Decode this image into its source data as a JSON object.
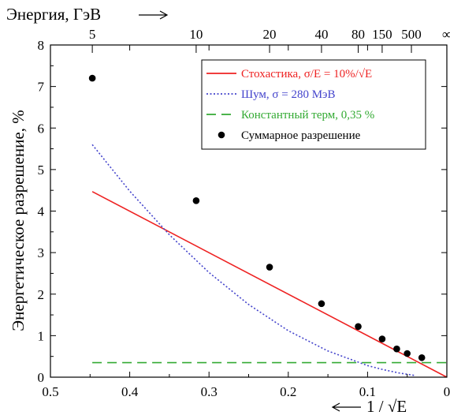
{
  "chart_data": {
    "type": "line",
    "title": "",
    "xlabel": "1 / √E",
    "ylabel": "Энергетическое разрешение, %",
    "top_axis_label": "Энергия, ГэВ",
    "xlim": [
      0.5,
      0
    ],
    "ylim": [
      0,
      8
    ],
    "x_ticks": [
      0.5,
      0.4,
      0.3,
      0.2,
      0.1,
      0
    ],
    "x_tick_labels": [
      "0.5",
      "0.4",
      "0.3",
      "0.2",
      "0.1",
      "0"
    ],
    "y_ticks": [
      0,
      1,
      2,
      3,
      4,
      5,
      6,
      7,
      8
    ],
    "y_tick_labels": [
      "0",
      "1",
      "2",
      "3",
      "4",
      "5",
      "6",
      "7",
      "8"
    ],
    "top_ticks": [
      {
        "label": "5",
        "x": 0.4472
      },
      {
        "label": "10",
        "x": 0.3162
      },
      {
        "label": "20",
        "x": 0.2236
      },
      {
        "label": "40",
        "x": 0.1581
      },
      {
        "label": "80",
        "x": 0.1118
      },
      {
        "label": "150",
        "x": 0.0816
      },
      {
        "label": "500",
        "x": 0.0447
      },
      {
        "label": "∞",
        "x": 0
      }
    ],
    "grid": false,
    "legend_position": "top-right",
    "series": [
      {
        "name": "Стохастика, σ/E = 10%/√E",
        "kind": "line",
        "color": "#ee2222",
        "dash": "solid",
        "x": [
          0.4472,
          0
        ],
        "y": [
          4.47,
          0
        ]
      },
      {
        "name": "Шум, σ = 280 МэВ",
        "kind": "line",
        "color": "#4444cc",
        "dash": "dotted",
        "x": [
          0.4472,
          0.4,
          0.35,
          0.3,
          0.25,
          0.2,
          0.15,
          0.1,
          0.08,
          0.06,
          0.05,
          0.04
        ],
        "y": [
          5.6,
          4.48,
          3.43,
          2.52,
          1.75,
          1.12,
          0.63,
          0.28,
          0.18,
          0.1,
          0.07,
          0.04
        ]
      },
      {
        "name": "Константный терм, 0,35 %",
        "kind": "line",
        "color": "#33aa33",
        "dash": "dashed",
        "x": [
          0.4472,
          0.0
        ],
        "y": [
          0.35,
          0.35
        ]
      },
      {
        "name": "Суммарное разрешение",
        "kind": "scatter",
        "color": "#000000",
        "x": [
          0.4472,
          0.3162,
          0.2236,
          0.1581,
          0.1118,
          0.0816,
          0.0632,
          0.05,
          0.0316
        ],
        "y": [
          7.2,
          4.25,
          2.65,
          1.77,
          1.22,
          0.92,
          0.68,
          0.57,
          0.47
        ]
      }
    ]
  }
}
